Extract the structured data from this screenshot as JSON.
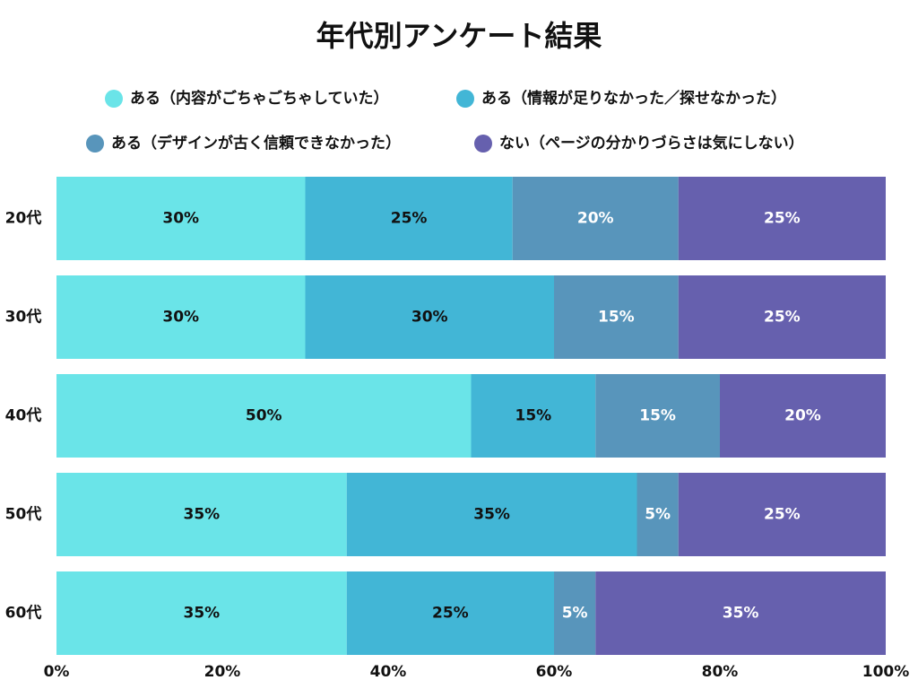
{
  "chart_data": {
    "type": "stacked-barh",
    "title": "年代別アンケート結果",
    "categories": [
      "20代",
      "30代",
      "40代",
      "50代",
      "60代"
    ],
    "series": [
      {
        "name": "ある（内容がごちゃごちゃしていた）",
        "color": "#6ae4e8",
        "values": [
          30,
          30,
          50,
          35,
          35
        ],
        "value_labels": [
          "30%",
          "30%",
          "50%",
          "35%",
          "35%"
        ]
      },
      {
        "name": "ある（情報が足りなかった／探せなかった）",
        "color": "#42b6d6",
        "values": [
          25,
          30,
          15,
          35,
          25
        ],
        "value_labels": [
          "25%",
          "30%",
          "15%",
          "35%",
          "25%"
        ]
      },
      {
        "name": "ある（デザインが古く信頼できなかった）",
        "color": "#5895bb",
        "values": [
          20,
          15,
          15,
          5,
          5
        ],
        "value_labels": [
          "20%",
          "15%",
          "15%",
          "5%",
          "5%"
        ]
      },
      {
        "name": "ない（ページの分かりづらさは気にしない）",
        "color": "#6660ae",
        "values": [
          25,
          25,
          20,
          25,
          35
        ],
        "value_labels": [
          "25%",
          "25%",
          "20%",
          "25%",
          "35%"
        ]
      }
    ],
    "xlim": [
      0,
      100
    ],
    "xticks": [
      {
        "value": 0,
        "label": "0%"
      },
      {
        "value": 20,
        "label": "20%"
      },
      {
        "value": 40,
        "label": "40%"
      },
      {
        "value": 60,
        "label": "60%"
      },
      {
        "value": 80,
        "label": "80%"
      },
      {
        "value": 100,
        "label": "100%"
      }
    ]
  }
}
